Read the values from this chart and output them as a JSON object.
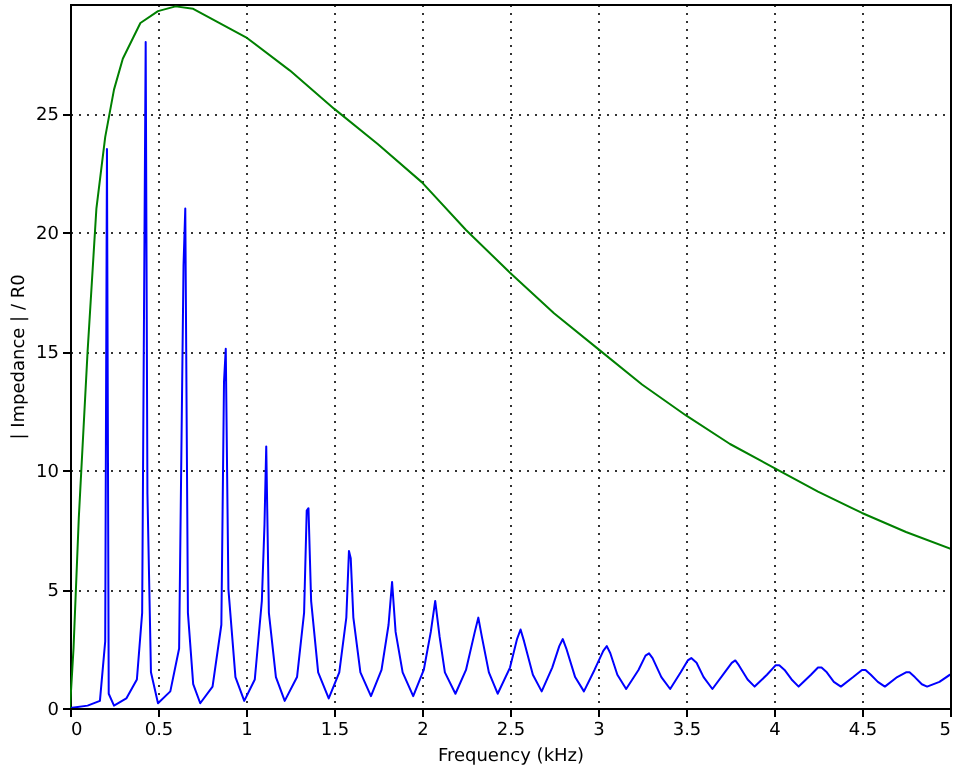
{
  "chart_data": {
    "type": "line",
    "xlabel": "Frequency (kHz)",
    "ylabel": "| Impedance | / R0",
    "xlim": [
      0,
      5
    ],
    "xticks": [
      0,
      0.5,
      1,
      1.5,
      2,
      2.5,
      3,
      3.5,
      4,
      4.5,
      5
    ],
    "ylim": [
      0,
      29.6
    ],
    "yticks": [
      0,
      5,
      10,
      15,
      20,
      25
    ],
    "grid": true,
    "legend": false,
    "line_style": "solid",
    "marker": "none",
    "series": [
      {
        "color": "#0000ff",
        "x": [
          0,
          0.1,
          0.17,
          0.2,
          0.21,
          0.22,
          0.25,
          0.32,
          0.38,
          0.41,
          0.43,
          0.44,
          0.46,
          0.5,
          0.57,
          0.62,
          0.645,
          0.655,
          0.67,
          0.7,
          0.74,
          0.81,
          0.86,
          0.875,
          0.885,
          0.9,
          0.94,
          0.99,
          1.05,
          1.09,
          1.105,
          1.115,
          1.13,
          1.17,
          1.22,
          1.29,
          1.33,
          1.345,
          1.355,
          1.37,
          1.41,
          1.47,
          1.53,
          1.57,
          1.585,
          1.595,
          1.61,
          1.65,
          1.71,
          1.77,
          1.81,
          1.83,
          1.85,
          1.89,
          1.95,
          2.01,
          2.05,
          2.075,
          2.1,
          2.13,
          2.19,
          2.25,
          2.3,
          2.32,
          2.34,
          2.38,
          2.43,
          2.5,
          2.54,
          2.56,
          2.58,
          2.63,
          2.68,
          2.74,
          2.78,
          2.8,
          2.82,
          2.87,
          2.92,
          2.98,
          3.03,
          3.05,
          3.07,
          3.11,
          3.16,
          3.23,
          3.27,
          3.29,
          3.31,
          3.36,
          3.41,
          3.47,
          3.51,
          3.53,
          3.56,
          3.6,
          3.65,
          3.72,
          3.76,
          3.78,
          3.8,
          3.85,
          3.89,
          3.96,
          4.01,
          4.03,
          4.06,
          4.1,
          4.14,
          4.21,
          4.25,
          4.27,
          4.3,
          4.34,
          4.38,
          4.45,
          4.5,
          4.52,
          4.55,
          4.59,
          4.63,
          4.7,
          4.75,
          4.77,
          4.8,
          4.84,
          4.87,
          4.94,
          5
        ],
        "values": [
          0,
          0.1,
          0.3,
          2.8,
          23.5,
          0.6,
          0.1,
          0.4,
          1.2,
          4,
          28,
          9,
          1.5,
          0.2,
          0.7,
          2.5,
          18.6,
          21,
          4,
          1,
          0.2,
          0.9,
          3.5,
          13.7,
          15.1,
          5,
          1.3,
          0.3,
          1.2,
          4.5,
          7.7,
          11,
          4,
          1.3,
          0.3,
          1.3,
          4,
          8.3,
          8.4,
          4.5,
          1.5,
          0.4,
          1.5,
          3.8,
          6.6,
          6.3,
          3.8,
          1.5,
          0.5,
          1.6,
          3.5,
          5.3,
          3.2,
          1.5,
          0.5,
          1.6,
          3.2,
          4.5,
          3,
          1.5,
          0.6,
          1.6,
          3.2,
          3.8,
          3,
          1.5,
          0.6,
          1.7,
          2.9,
          3.3,
          2.8,
          1.4,
          0.7,
          1.7,
          2.6,
          2.9,
          2.5,
          1.3,
          0.7,
          1.6,
          2.4,
          2.6,
          2.3,
          1.4,
          0.8,
          1.6,
          2.2,
          2.3,
          2.1,
          1.3,
          0.8,
          1.5,
          2,
          2.1,
          1.9,
          1.3,
          0.8,
          1.5,
          1.9,
          2,
          1.8,
          1.2,
          0.9,
          1.4,
          1.8,
          1.8,
          1.6,
          1.2,
          0.9,
          1.4,
          1.7,
          1.7,
          1.5,
          1.1,
          0.9,
          1.3,
          1.6,
          1.6,
          1.4,
          1.1,
          0.9,
          1.3,
          1.5,
          1.5,
          1.3,
          1,
          0.9,
          1.1,
          1.4
        ]
      },
      {
        "color": "#008000",
        "x": [
          0,
          0.02,
          0.05,
          0.1,
          0.15,
          0.2,
          0.25,
          0.3,
          0.4,
          0.5,
          0.6,
          0.7,
          0.8,
          0.9,
          1,
          1.25,
          1.5,
          1.75,
          2,
          2.25,
          2.5,
          2.75,
          3,
          3.25,
          3.5,
          3.75,
          4,
          4.25,
          4.5,
          4.75,
          5
        ],
        "values": [
          0,
          2.5,
          8,
          15,
          21,
          24,
          26,
          27.3,
          28.8,
          29.3,
          29.5,
          29.4,
          29,
          28.6,
          28.2,
          26.8,
          25.2,
          23.7,
          22.1,
          20.1,
          18.3,
          16.6,
          15.1,
          13.6,
          12.3,
          11.1,
          10.1,
          9.1,
          8.2,
          7.4,
          6.7
        ]
      }
    ]
  }
}
